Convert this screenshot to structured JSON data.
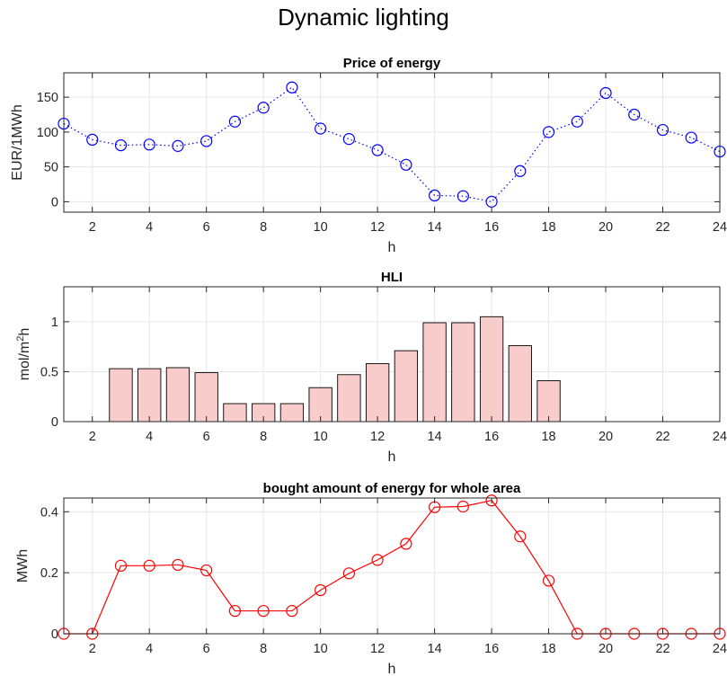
{
  "figure": {
    "title": "Dynamic lighting"
  },
  "colors": {
    "price": "#0000ff",
    "hli_fill": "#f9cccc",
    "hli_edge": "#000000",
    "energy": "#ff0000",
    "grid": "#e6e6e6",
    "axis": "#262626"
  },
  "chart_data": [
    {
      "type": "line",
      "title": "Price of energy",
      "xlabel": "h",
      "ylabel": "EUR/1MWh",
      "xlim": [
        1,
        24
      ],
      "ylim": [
        -15,
        185
      ],
      "xticks": [
        2,
        4,
        6,
        8,
        10,
        12,
        14,
        16,
        18,
        20,
        22,
        24
      ],
      "yticks": [
        0,
        50,
        100,
        150
      ],
      "grid": true,
      "line_style": "dotted",
      "marker": "circle",
      "series": [
        {
          "x": [
            1,
            2,
            3,
            4,
            5,
            6,
            7,
            8,
            9,
            10,
            11,
            12,
            13,
            14,
            15,
            16,
            17,
            18,
            19,
            20,
            21,
            22,
            23,
            24
          ],
          "values": [
            112,
            89,
            81,
            82,
            80,
            87,
            115,
            135,
            164,
            105,
            90,
            74,
            53,
            9,
            8,
            0,
            44,
            100,
            115,
            156,
            125,
            103,
            92,
            72
          ]
        }
      ]
    },
    {
      "type": "bar",
      "title": "HLI",
      "xlabel": "h",
      "ylabel": "mol/m²h",
      "ylabel_parts": {
        "base": "mol/m",
        "sup": "2",
        "tail": "h"
      },
      "xlim": [
        1,
        24
      ],
      "ylim": [
        0,
        1.35
      ],
      "xticks": [
        2,
        4,
        6,
        8,
        10,
        12,
        14,
        16,
        18,
        20,
        22,
        24
      ],
      "yticks": [
        0,
        0.5,
        1
      ],
      "ytick_labels": [
        "0",
        "0.5",
        "1"
      ],
      "grid": true,
      "series": [
        {
          "x": [
            1,
            2,
            3,
            4,
            5,
            6,
            7,
            8,
            9,
            10,
            11,
            12,
            13,
            14,
            15,
            16,
            17,
            18,
            19,
            20,
            21,
            22,
            23,
            24
          ],
          "values": [
            0,
            0,
            0.53,
            0.53,
            0.54,
            0.49,
            0.18,
            0.18,
            0.18,
            0.34,
            0.47,
            0.58,
            0.71,
            0.99,
            0.99,
            1.05,
            0.76,
            0.41,
            0,
            0,
            0,
            0,
            0,
            0
          ]
        }
      ]
    },
    {
      "type": "line",
      "title": "bought amount of energy for whole area",
      "xlabel": "h",
      "ylabel": "MWh",
      "xlim": [
        1,
        24
      ],
      "ylim": [
        0,
        0.445
      ],
      "xticks": [
        2,
        4,
        6,
        8,
        10,
        12,
        14,
        16,
        18,
        20,
        22,
        24
      ],
      "yticks": [
        0,
        0.2,
        0.4
      ],
      "ytick_labels": [
        "0",
        "0.2",
        "0.4"
      ],
      "grid": true,
      "line_style": "solid",
      "marker": "circle",
      "series": [
        {
          "x": [
            1,
            2,
            3,
            4,
            5,
            6,
            7,
            8,
            9,
            10,
            11,
            12,
            13,
            14,
            15,
            16,
            17,
            18,
            19,
            20,
            21,
            22,
            23,
            24
          ],
          "values": [
            0,
            0,
            0.223,
            0.223,
            0.226,
            0.208,
            0.075,
            0.075,
            0.075,
            0.143,
            0.198,
            0.242,
            0.295,
            0.415,
            0.417,
            0.437,
            0.319,
            0.174,
            0,
            0,
            0,
            0,
            0,
            0
          ]
        }
      ]
    }
  ]
}
